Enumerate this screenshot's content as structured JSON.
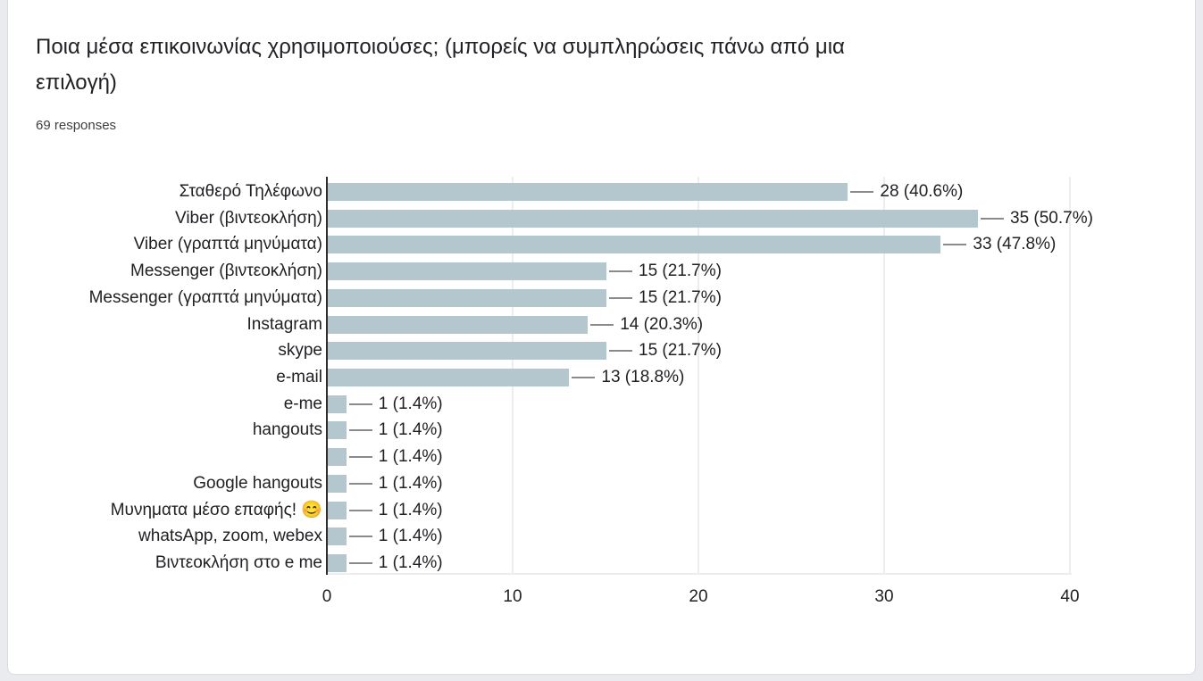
{
  "page": {
    "background_color": "#e9ebee",
    "card_border_color": "#dadce0"
  },
  "header": {
    "title": "Ποια μέσα επικοινωνίας χρησιμοποιούσες; (μπορείς να συμπληρώσεις πάνω από μια επιλογή)",
    "title_lines": [
      "Ποια μέσα επικοινωνίας χρησιμοποιούσες; (μπορείς να συμπληρώσεις πάνω από μια",
      "επιλογή)"
    ],
    "responses_label": "69 responses"
  },
  "chart_data": {
    "type": "bar",
    "orientation": "horizontal",
    "title": "",
    "xlabel": "",
    "ylabel": "",
    "categories": [
      "Σταθερό Τηλέφωνο",
      "Viber (βιντεοκλήση)",
      "Viber (γραπτά μηνύματα)",
      "Messenger (βιντεοκλήση)",
      "Messenger (γραπτά μηνύματα)",
      "Instagram",
      "skype",
      "e-mail",
      "e-me",
      "hangouts",
      "",
      "Google hangouts",
      "Μυνηματα μέσο επαφής! 😊",
      "whatsApp, zoom, webex",
      "Βιντεοκλήση στο e me"
    ],
    "values": [
      28,
      35,
      33,
      15,
      15,
      14,
      15,
      13,
      1,
      1,
      1,
      1,
      1,
      1,
      1
    ],
    "value_labels": [
      "28 (40.6%)",
      "35 (50.7%)",
      "33 (47.8%)",
      "15 (21.7%)",
      "15 (21.7%)",
      "14 (20.3%)",
      "15 (21.7%)",
      "13 (18.8%)",
      "1 (1.4%)",
      "1 (1.4%)",
      "1 (1.4%)",
      "1 (1.4%)",
      "1 (1.4%)",
      "1 (1.4%)",
      "1 (1.4%)"
    ],
    "x_ticks": [
      0,
      10,
      20,
      30,
      40
    ],
    "xlim": [
      0,
      40
    ],
    "grid": true,
    "legend": false,
    "bar_color": "#b4c7ce",
    "axis_color": "#2e2e2e",
    "gridline_color": "#ededed",
    "leader_line_color": "#8a8a8a",
    "label_color": "#202124"
  }
}
